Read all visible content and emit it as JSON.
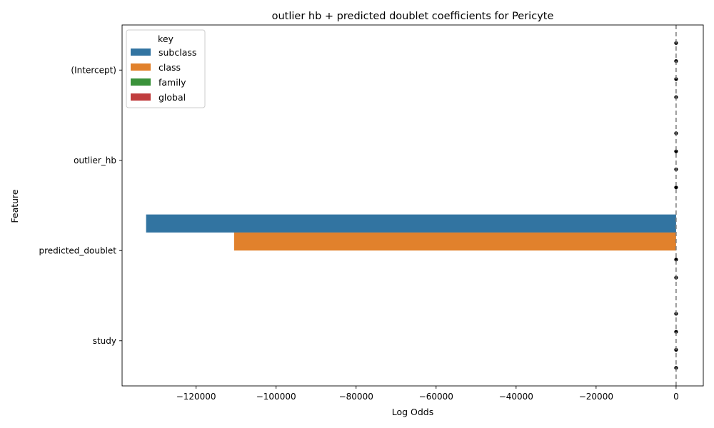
{
  "chart_data": {
    "type": "bar",
    "orientation": "horizontal",
    "title": "outlier hb + predicted doublet coefficients for Pericyte",
    "xlabel": "Log Odds",
    "ylabel": "Feature",
    "categories": [
      "(Intercept)",
      "outlier_hb",
      "predicted_doublet",
      "study"
    ],
    "series": [
      {
        "name": "subclass",
        "color": "#3274a1",
        "values": [
          0,
          0,
          -132500,
          0
        ]
      },
      {
        "name": "class",
        "color": "#e1812c",
        "values": [
          0,
          0,
          -110500,
          0
        ]
      },
      {
        "name": "family",
        "color": "#3a923a",
        "values": [
          0,
          0,
          0,
          0
        ]
      },
      {
        "name": "global",
        "color": "#c03d3e",
        "values": [
          0,
          0,
          0,
          0
        ]
      }
    ],
    "error_points": [
      [
        true,
        true,
        true,
        true
      ],
      [
        true,
        true,
        true,
        true
      ],
      [
        false,
        false,
        true,
        true
      ],
      [
        true,
        true,
        true,
        true
      ]
    ],
    "xlim": [
      -138500,
      6800
    ],
    "xticks": [
      -120000,
      -100000,
      -80000,
      -60000,
      -40000,
      -20000,
      0
    ],
    "xtick_labels": [
      "−120000",
      "−100000",
      "−80000",
      "−60000",
      "−40000",
      "−20000",
      "0"
    ],
    "reference_line_x": 0,
    "legend": {
      "title": "key",
      "position": "top-left"
    },
    "grid": false
  }
}
